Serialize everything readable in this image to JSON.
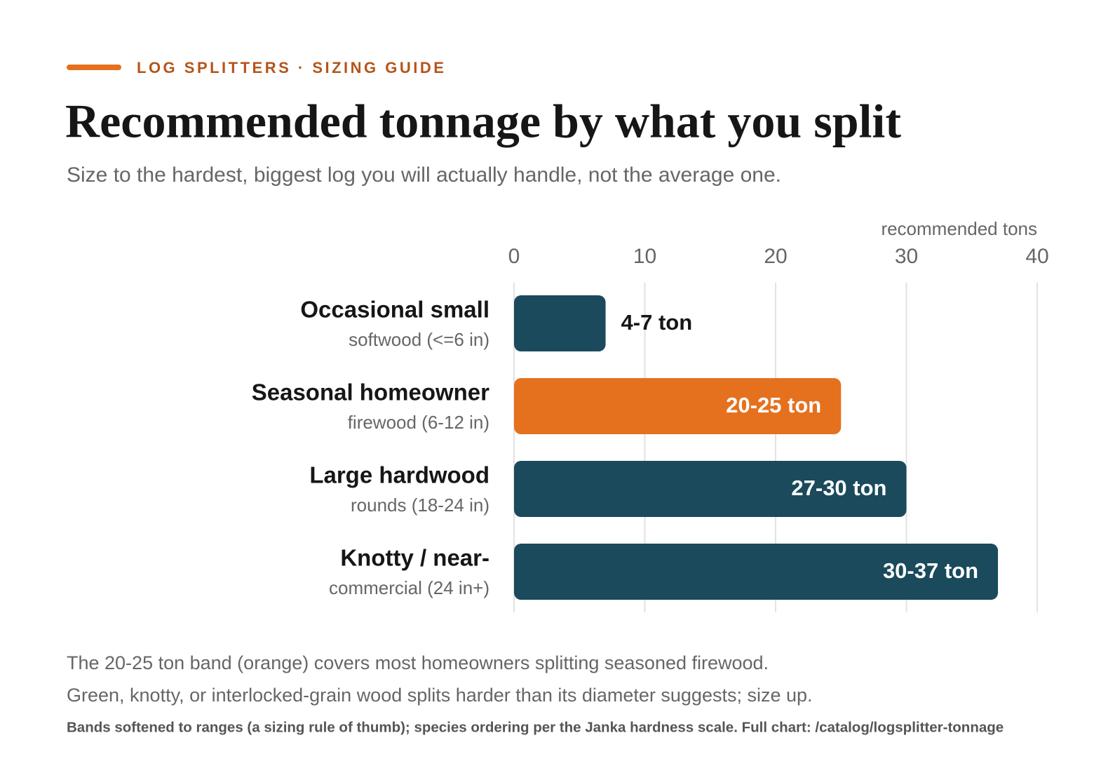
{
  "chart_data": {
    "type": "bar",
    "orientation": "horizontal",
    "kicker": "LOG SPLITTERS · SIZING GUIDE",
    "title": "Recommended tonnage by what you split",
    "subtitle": "Size to the hardest, biggest log you will actually handle, not the average one.",
    "x_label": "recommended tons",
    "categories": [
      "Occasional small",
      "Seasonal homeowner",
      "Large hardwood",
      "Knotty / near-"
    ],
    "category_details": [
      "softwood (<=6 in)",
      "firewood (6-12 in)",
      "rounds (18-24 in)",
      "commercial (24 in+)"
    ],
    "values": [
      7,
      25,
      30,
      37
    ],
    "value_labels": [
      "4-7 ton",
      "20-25 ton",
      "27-30 ton",
      "30-37 ton"
    ],
    "colors": [
      "#1a4a5c",
      "#e5711e",
      "#1a4a5c",
      "#1a4a5c"
    ],
    "xlim": [
      0,
      40
    ],
    "xticks": [
      0,
      10,
      20,
      30,
      40
    ],
    "grid": true,
    "annotations": [
      "The 20-25 ton band (orange) covers most homeowners splitting seasoned firewood.",
      "Green, knotty, or interlocked-grain wood splits harder than its diameter suggests; size up."
    ],
    "source": "Bands softened to ranges (a sizing rule of thumb); species ordering per the Janka hardness scale. Full chart: /catalog/logsplitter-tonnage"
  }
}
